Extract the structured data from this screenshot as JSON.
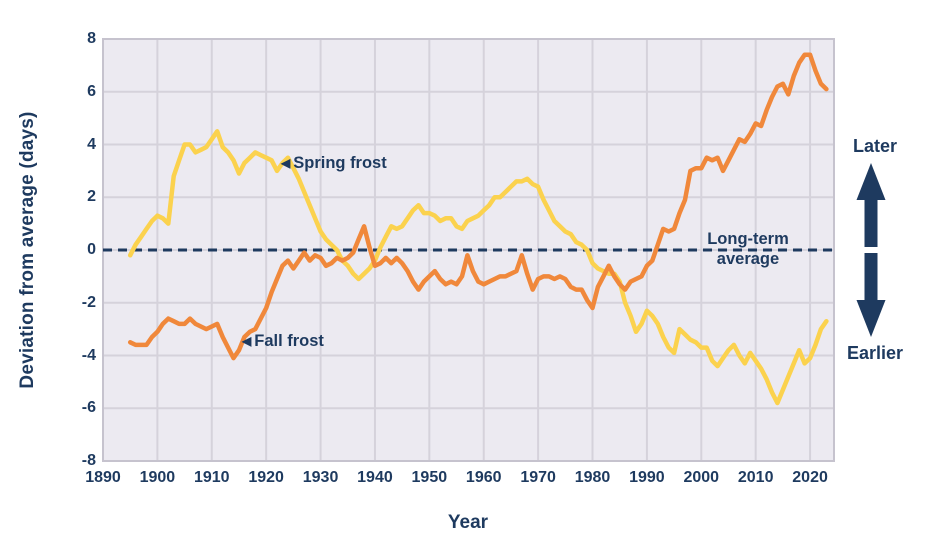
{
  "colors": {
    "navy": "#1E3A5F",
    "spring_line": "#FBD24E",
    "fall_line": "#F0883B",
    "plot_background": "#ECEAF1",
    "gridline": "#D5D2DB",
    "plot_border": "#C6C3CE",
    "page_background": "#FFFFFF"
  },
  "chart_data": {
    "type": "line",
    "title": "",
    "xlabel": "Year",
    "ylabel": "Deviation from average (days)",
    "xlim": [
      1890,
      2024.4
    ],
    "ylim": [
      -8,
      8
    ],
    "grid": true,
    "xticks": [
      1890,
      1900,
      1910,
      1920,
      1930,
      1940,
      1950,
      1960,
      1970,
      1980,
      1990,
      2000,
      2010,
      2020
    ],
    "yticks": [
      8,
      6,
      4,
      2,
      0,
      -2,
      -4,
      -6,
      -8
    ],
    "x_start": 1895,
    "x_end": 2023,
    "baseline": {
      "value": 0,
      "style": "dashed",
      "label_line1": "Long-term",
      "label_line2": "average"
    },
    "series": [
      {
        "name": "Spring frost",
        "color": "#FBD24E",
        "values": [
          -0.2,
          0.2,
          0.5,
          0.8,
          1.1,
          1.3,
          1.2,
          1.0,
          2.8,
          3.4,
          4.0,
          4.0,
          3.7,
          3.8,
          3.9,
          4.2,
          4.5,
          3.9,
          3.7,
          3.4,
          2.9,
          3.3,
          3.5,
          3.7,
          3.6,
          3.5,
          3.4,
          3.0,
          3.3,
          3.5,
          3.1,
          2.7,
          2.2,
          1.7,
          1.2,
          0.7,
          0.4,
          0.2,
          0.0,
          -0.4,
          -0.6,
          -0.9,
          -1.1,
          -0.9,
          -0.7,
          -0.4,
          0.1,
          0.5,
          0.9,
          0.8,
          0.9,
          1.2,
          1.5,
          1.7,
          1.4,
          1.4,
          1.3,
          1.1,
          1.2,
          1.2,
          0.9,
          0.8,
          1.1,
          1.2,
          1.3,
          1.5,
          1.7,
          2.0,
          2.0,
          2.2,
          2.4,
          2.6,
          2.6,
          2.7,
          2.5,
          2.4,
          1.9,
          1.5,
          1.1,
          0.9,
          0.7,
          0.6,
          0.3,
          0.2,
          0.0,
          -0.5,
          -0.7,
          -0.8,
          -0.9,
          -0.9,
          -1.2,
          -2.0,
          -2.5,
          -3.1,
          -2.8,
          -2.3,
          -2.5,
          -2.8,
          -3.3,
          -3.7,
          -3.9,
          -3.0,
          -3.2,
          -3.4,
          -3.5,
          -3.7,
          -3.7,
          -4.2,
          -4.4,
          -4.1,
          -3.8,
          -3.6,
          -4.0,
          -4.3,
          -3.9,
          -4.2,
          -4.5,
          -4.9,
          -5.4,
          -5.8,
          -5.3,
          -4.8,
          -4.3,
          -3.8,
          -4.3,
          -4.1,
          -3.6,
          -3.0,
          -2.7
        ]
      },
      {
        "name": "Fall frost",
        "color": "#F0883B",
        "values": [
          -3.5,
          -3.6,
          -3.6,
          -3.6,
          -3.3,
          -3.1,
          -2.8,
          -2.6,
          -2.7,
          -2.8,
          -2.8,
          -2.6,
          -2.8,
          -2.9,
          -3.0,
          -2.9,
          -2.8,
          -3.3,
          -3.7,
          -4.1,
          -3.8,
          -3.3,
          -3.1,
          -3.0,
          -2.6,
          -2.2,
          -1.6,
          -1.1,
          -0.6,
          -0.4,
          -0.7,
          -0.4,
          -0.1,
          -0.4,
          -0.2,
          -0.3,
          -0.6,
          -0.5,
          -0.3,
          -0.4,
          -0.3,
          -0.1,
          0.4,
          0.9,
          0.1,
          -0.6,
          -0.5,
          -0.3,
          -0.5,
          -0.3,
          -0.5,
          -0.8,
          -1.2,
          -1.5,
          -1.2,
          -1.0,
          -0.8,
          -1.1,
          -1.3,
          -1.2,
          -1.3,
          -1.0,
          -0.2,
          -0.8,
          -1.2,
          -1.3,
          -1.2,
          -1.1,
          -1.0,
          -1.0,
          -0.9,
          -0.8,
          -0.2,
          -0.9,
          -1.5,
          -1.1,
          -1.0,
          -1.0,
          -1.1,
          -1.0,
          -1.1,
          -1.4,
          -1.5,
          -1.5,
          -1.9,
          -2.2,
          -1.4,
          -1.0,
          -0.6,
          -1.0,
          -1.3,
          -1.5,
          -1.2,
          -1.1,
          -1.0,
          -0.6,
          -0.4,
          0.2,
          0.8,
          0.7,
          0.8,
          1.4,
          1.9,
          3.0,
          3.1,
          3.1,
          3.5,
          3.4,
          3.5,
          3.0,
          3.4,
          3.8,
          4.2,
          4.1,
          4.4,
          4.8,
          4.7,
          5.3,
          5.8,
          6.2,
          6.3,
          5.9,
          6.6,
          7.1,
          7.4,
          7.4,
          6.8,
          6.3,
          6.1
        ]
      }
    ],
    "annotations": {
      "spring": {
        "marker": "◀",
        "label": "Spring frost"
      },
      "fall": {
        "marker": "◀",
        "label": "Fall frost"
      },
      "later": "Later",
      "earlier": "Earlier"
    }
  }
}
